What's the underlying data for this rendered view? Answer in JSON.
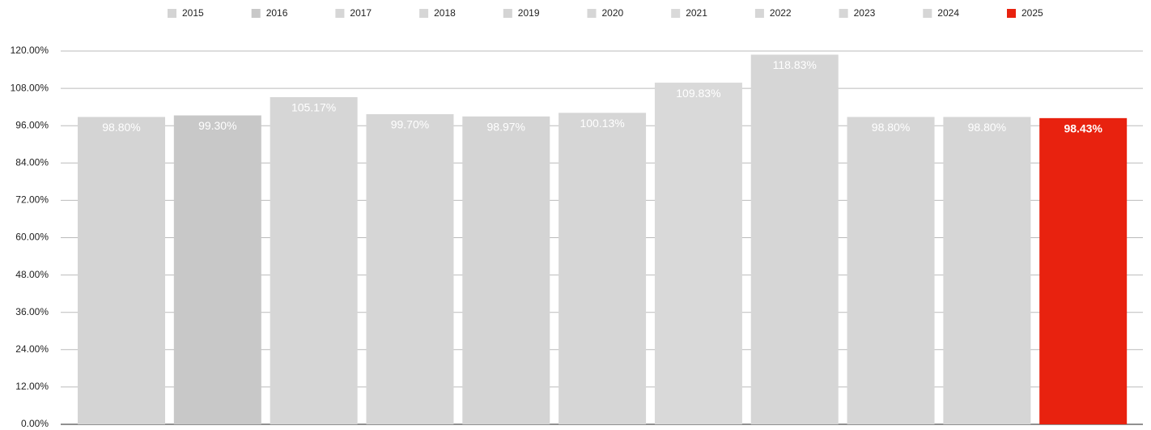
{
  "chart_data": {
    "type": "bar",
    "categories": [
      null
    ],
    "series": [
      {
        "name": "2015",
        "color": "#d4d4d4",
        "values": [
          98.8
        ],
        "value_labels": [
          "98.80%"
        ]
      },
      {
        "name": "2016",
        "color": "#c8c8c8",
        "values": [
          99.3
        ],
        "value_labels": [
          "99.30%"
        ]
      },
      {
        "name": "2017",
        "color": "#d6d6d6",
        "values": [
          105.17
        ],
        "value_labels": [
          "105.17%"
        ]
      },
      {
        "name": "2018",
        "color": "#d6d6d6",
        "values": [
          99.7
        ],
        "value_labels": [
          "99.70%"
        ]
      },
      {
        "name": "2019",
        "color": "#d4d4d4",
        "values": [
          98.97
        ],
        "value_labels": [
          "98.97%"
        ]
      },
      {
        "name": "2020",
        "color": "#d6d6d6",
        "values": [
          100.13
        ],
        "value_labels": [
          "100.13%"
        ]
      },
      {
        "name": "2021",
        "color": "#d9d9d9",
        "values": [
          109.83
        ],
        "value_labels": [
          "109.83%"
        ]
      },
      {
        "name": "2022",
        "color": "#d6d6d6",
        "values": [
          118.83
        ],
        "value_labels": [
          "118.83%"
        ]
      },
      {
        "name": "2023",
        "color": "#d6d6d6",
        "values": [
          98.8
        ],
        "value_labels": [
          "98.80%"
        ]
      },
      {
        "name": "2024",
        "color": "#d6d6d6",
        "values": [
          98.8
        ],
        "value_labels": [
          "98.80%"
        ]
      },
      {
        "name": "2025",
        "color": "#e8220f",
        "values": [
          98.43
        ],
        "value_labels": [
          "98.43%"
        ]
      }
    ],
    "ylim": [
      0,
      120
    ],
    "yticks": [
      {
        "value": 0,
        "label": "0.00%"
      },
      {
        "value": 12,
        "label": "12.00%"
      },
      {
        "value": 24,
        "label": "24.00%"
      },
      {
        "value": 36,
        "label": "36.00%"
      },
      {
        "value": 48,
        "label": "48.00%"
      },
      {
        "value": 60,
        "label": "60.00%"
      },
      {
        "value": 72,
        "label": "72.00%"
      },
      {
        "value": 84,
        "label": "84.00%"
      },
      {
        "value": 96,
        "label": "96.00%"
      },
      {
        "value": 108,
        "label": "108.00%"
      },
      {
        "value": 120,
        "label": "120.00%"
      }
    ],
    "grid": true,
    "legend": "top"
  }
}
